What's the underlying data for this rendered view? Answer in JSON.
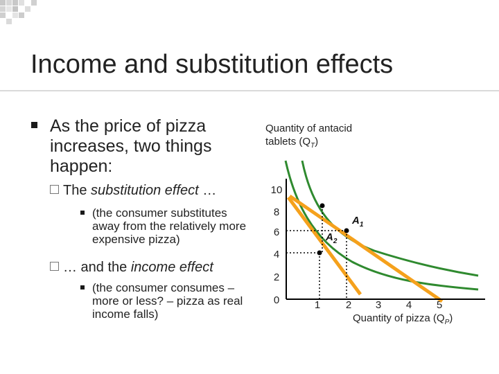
{
  "slide": {
    "title": "Income and substitution effects",
    "bullet_main": "As the price of pizza increases, two things happen:",
    "sub1_prefix": "The ",
    "sub1_italic": "substitution effect",
    "sub1_suffix": " …",
    "sub1_detail": "(the consumer substitutes away from the relatively more expensive pizza)",
    "sub2_prefix": "… and the ",
    "sub2_italic": "income effect",
    "sub2_detail": "(the consumer consumes – more or less? – pizza as real income falls)"
  },
  "chart_data": {
    "type": "diagram",
    "ylabel_line1": "Quantity of antacid",
    "ylabel_line2_prefix": "tablets (Q",
    "ylabel_line2_sub": "T",
    "ylabel_line2_suffix": ")",
    "xlabel_prefix": "Quantity of pizza (Q",
    "xlabel_sub": "P",
    "xlabel_suffix": ")",
    "y_ticks": [
      "10",
      "8",
      "6",
      "4",
      "2",
      "0"
    ],
    "x_ticks": [
      "1",
      "2",
      "3",
      "4",
      "5"
    ],
    "points": [
      {
        "name": "A",
        "sub": "1",
        "x": 2,
        "y": 6
      },
      {
        "name": "A",
        "sub": "2",
        "x": 1,
        "y": 4
      }
    ],
    "colors": {
      "budget": "#f5a11c",
      "indifference": "#2f8a2f",
      "axis": "#000000",
      "guide": "#000000"
    }
  }
}
